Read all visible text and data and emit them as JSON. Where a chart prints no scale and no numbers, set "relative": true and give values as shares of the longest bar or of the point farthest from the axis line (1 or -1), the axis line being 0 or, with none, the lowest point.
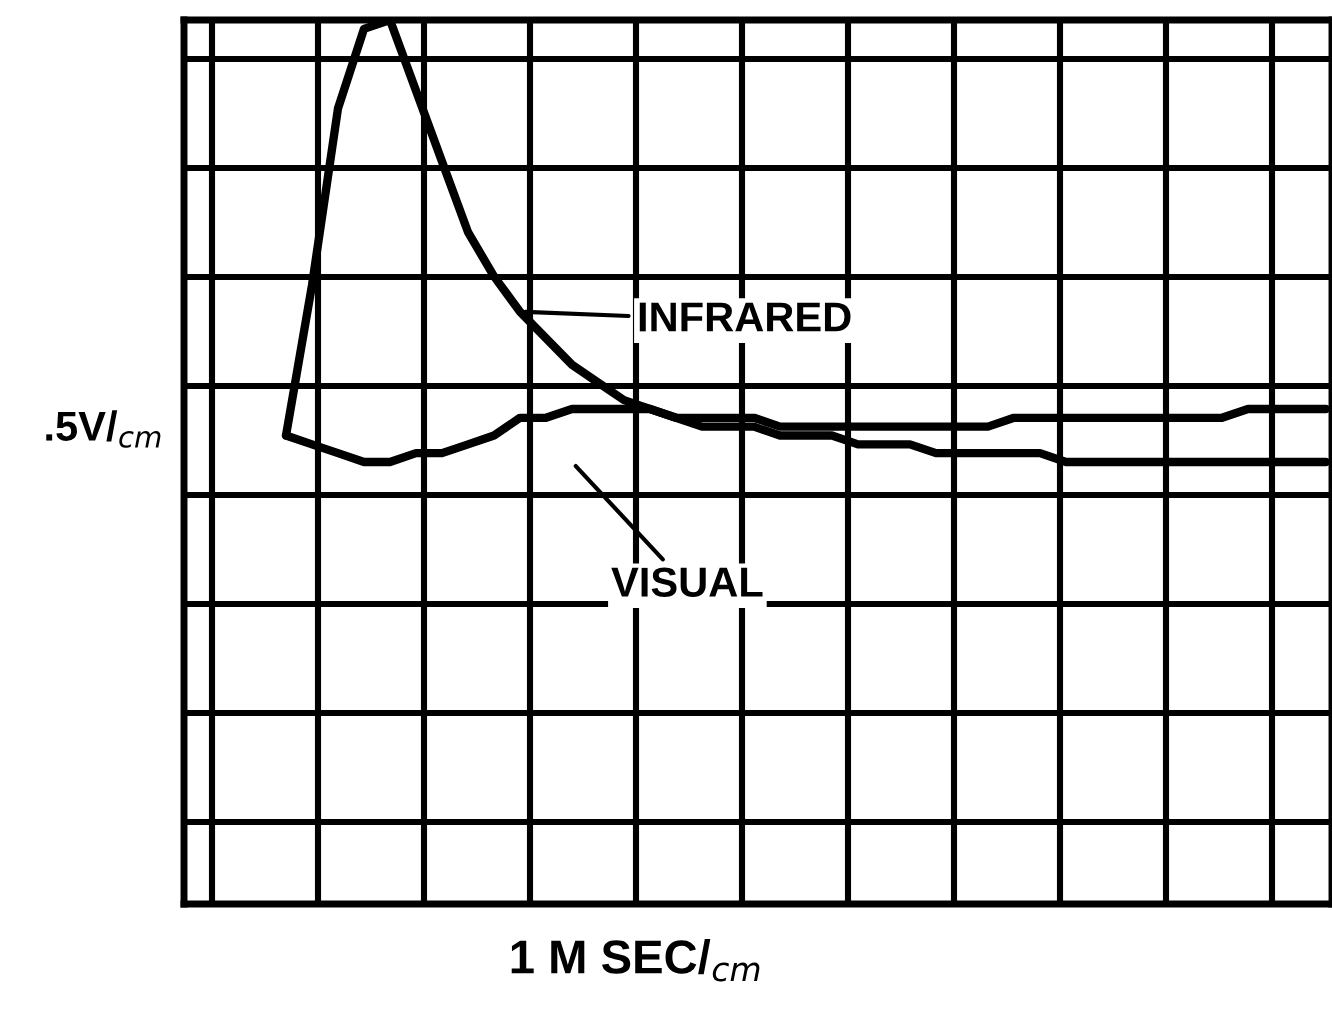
{
  "chart_data": {
    "type": "line",
    "relative": true,
    "xlabel": "1 M SEC/$_{cm}$",
    "ylabel": ".5V/$_{cm}$",
    "categories": [
      null,
      null,
      null,
      null,
      null,
      null,
      null,
      null,
      null,
      null,
      null,
      null,
      null,
      null,
      null,
      null,
      null,
      null,
      null,
      null,
      null,
      null,
      null,
      null,
      null,
      null,
      null,
      null,
      null,
      null,
      null,
      null,
      null,
      null,
      null,
      null,
      null,
      null,
      null,
      null,
      null
    ],
    "series": [
      {
        "name": "INFRARED",
        "color": "#000000",
        "values": [
          0.53,
          0.7,
          0.9,
          0.99,
          1.0,
          0.92,
          0.84,
          0.76,
          0.71,
          0.67,
          0.64,
          0.61,
          0.59,
          0.57,
          0.56,
          0.55,
          0.54,
          0.54,
          0.54,
          0.53,
          0.53,
          0.53,
          0.52,
          0.52,
          0.52,
          0.51,
          0.51,
          0.51,
          0.51,
          0.51,
          0.5,
          0.5,
          0.5,
          0.5,
          0.5,
          0.5,
          0.5,
          0.5,
          0.5,
          0.5,
          0.5
        ]
      },
      {
        "name": "VISUAL",
        "color": "#000000",
        "values": [
          0.53,
          0.52,
          0.51,
          0.5,
          0.5,
          0.51,
          0.51,
          0.52,
          0.53,
          0.55,
          0.55,
          0.56,
          0.56,
          0.56,
          0.56,
          0.55,
          0.55,
          0.55,
          0.55,
          0.54,
          0.54,
          0.54,
          0.54,
          0.54,
          0.54,
          0.54,
          0.54,
          0.54,
          0.55,
          0.55,
          0.55,
          0.55,
          0.55,
          0.55,
          0.55,
          0.55,
          0.55,
          0.56,
          0.56,
          0.56,
          0.56
        ]
      }
    ],
    "grid": true,
    "marker": "none",
    "line_style": "solid"
  }
}
